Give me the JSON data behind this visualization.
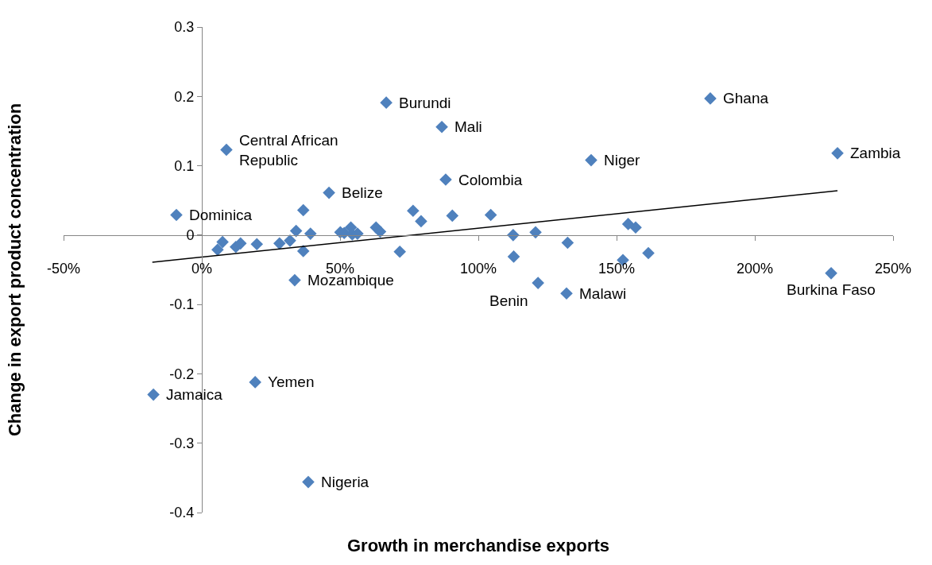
{
  "chart_data": {
    "type": "scatter",
    "xlabel": "Growth in merchandise exports",
    "ylabel": "Change in export product concentration",
    "xlim": [
      -50,
      250
    ],
    "xticks": [
      {
        "value": -50,
        "label": "-50%"
      },
      {
        "value": 0,
        "label": "0%"
      },
      {
        "value": 50,
        "label": "50%"
      },
      {
        "value": 100,
        "label": "100%"
      },
      {
        "value": 150,
        "label": "150%"
      },
      {
        "value": 200,
        "label": "200%"
      },
      {
        "value": 250,
        "label": "250%"
      }
    ],
    "ylim": [
      -0.4,
      0.3
    ],
    "yticks": [
      {
        "value": -0.4,
        "label": "-0.4"
      },
      {
        "value": -0.3,
        "label": "-0.3"
      },
      {
        "value": -0.2,
        "label": "-0.2"
      },
      {
        "value": -0.1,
        "label": "-0.1"
      },
      {
        "value": 0,
        "label": "0"
      },
      {
        "value": 0.1,
        "label": "0.1"
      },
      {
        "value": 0.2,
        "label": "0.2"
      },
      {
        "value": 0.3,
        "label": "0.3"
      }
    ],
    "series": [
      {
        "marker": "diamond",
        "color": "#4f81bd",
        "x": [
          -9.2,
          8.9,
          66.7,
          86.8,
          183.9,
          229.9,
          140.8,
          46.0,
          88.2,
          33.6,
          121.6,
          131.9,
          227.6,
          19.3,
          -17.5,
          38.5,
          5.7,
          7.5,
          12.3,
          14.0,
          19.9,
          28.1,
          31.9,
          34.1,
          36.7,
          36.7,
          39.3,
          50.1,
          51.5,
          53.9,
          54.4,
          56.3,
          63.0,
          64.5,
          71.6,
          76.4,
          79.3,
          90.6,
          104.5,
          112.6,
          120.7,
          132.3,
          112.8,
          154.2,
          156.9,
          152.3,
          161.5
        ],
        "values": [
          0.029,
          0.123,
          0.191,
          0.156,
          0.197,
          0.118,
          0.108,
          0.061,
          0.08,
          -0.065,
          -0.069,
          -0.084,
          -0.055,
          -0.212,
          -0.23,
          -0.356,
          -0.021,
          -0.01,
          -0.017,
          -0.012,
          -0.013,
          -0.012,
          -0.008,
          0.006,
          0.036,
          -0.023,
          0.002,
          0.004,
          0.003,
          0.011,
          0.001,
          0.002,
          0.011,
          0.005,
          -0.024,
          0.035,
          0.02,
          0.028,
          0.029,
          0.0,
          0.004,
          -0.011,
          -0.031,
          0.016,
          0.011,
          -0.036,
          -0.026
        ]
      },
      {
        "type": "line",
        "color": "#000000",
        "x": [
          -17.9,
          229.9
        ],
        "values": [
          -0.039,
          0.064
        ]
      }
    ],
    "annotations": [
      {
        "text": "Dominica",
        "x": -9.2,
        "y": 0.029
      },
      {
        "text": "Central African\nRepublic",
        "x": 8.9,
        "y": 0.123
      },
      {
        "text": "Burundi",
        "x": 66.7,
        "y": 0.191
      },
      {
        "text": "Mali",
        "x": 86.8,
        "y": 0.156
      },
      {
        "text": "Ghana",
        "x": 183.9,
        "y": 0.197
      },
      {
        "text": "Zambia",
        "x": 229.9,
        "y": 0.118
      },
      {
        "text": "Niger",
        "x": 140.8,
        "y": 0.108
      },
      {
        "text": "Belize",
        "x": 46.0,
        "y": 0.061
      },
      {
        "text": "Colombia",
        "x": 88.2,
        "y": 0.08
      },
      {
        "text": "Mozambique",
        "x": 33.6,
        "y": -0.065
      },
      {
        "text": "Benin",
        "x": 121.6,
        "y": -0.069
      },
      {
        "text": "Malawi",
        "x": 131.9,
        "y": -0.084
      },
      {
        "text": "Burkina Faso",
        "x": 227.6,
        "y": -0.055
      },
      {
        "text": "Yemen",
        "x": 19.3,
        "y": -0.212
      },
      {
        "text": "Jamaica",
        "x": -17.5,
        "y": -0.23
      },
      {
        "text": "Nigeria",
        "x": 38.5,
        "y": -0.356
      }
    ]
  }
}
